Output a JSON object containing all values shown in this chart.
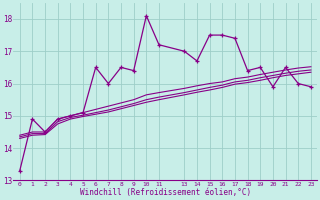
{
  "xlabel": "Windchill (Refroidissement éolien,°C)",
  "background_color": "#c8eee8",
  "grid_color": "#9ecec8",
  "line_color": "#880088",
  "xlim": [
    -0.5,
    23.5
  ],
  "ylim": [
    13.0,
    18.5
  ],
  "yticks": [
    13,
    14,
    15,
    16,
    17,
    18
  ],
  "xtick_positions": [
    0,
    1,
    2,
    3,
    4,
    5,
    6,
    7,
    8,
    9,
    10,
    11,
    13,
    14,
    15,
    16,
    17,
    18,
    19,
    20,
    21,
    22,
    23
  ],
  "xtick_labels": [
    "0",
    "1",
    "2",
    "3",
    "4",
    "5",
    "6",
    "7",
    "8",
    "9",
    "10",
    "11",
    "13",
    "14",
    "15",
    "16",
    "17",
    "18",
    "19",
    "20",
    "21",
    "22",
    "23"
  ],
  "series1_x": [
    0,
    1,
    2,
    3,
    4,
    5,
    6,
    7,
    8,
    9,
    10,
    11,
    13,
    14,
    15,
    16,
    17,
    18,
    19,
    20,
    21,
    22,
    23
  ],
  "series1_y": [
    13.3,
    14.9,
    14.5,
    14.9,
    15.0,
    15.1,
    16.5,
    16.0,
    16.5,
    16.4,
    18.1,
    17.2,
    17.0,
    16.7,
    17.5,
    17.5,
    17.4,
    16.4,
    16.5,
    15.9,
    16.5,
    16.0,
    15.9
  ],
  "series2_x": [
    0,
    1,
    2,
    3,
    4,
    5,
    6,
    7,
    8,
    9,
    10,
    11,
    13,
    14,
    15,
    16,
    17,
    18,
    19,
    20,
    21,
    22,
    23
  ],
  "series2_y": [
    14.4,
    14.5,
    14.5,
    14.9,
    15.0,
    15.1,
    15.2,
    15.3,
    15.4,
    15.5,
    15.65,
    15.72,
    15.85,
    15.93,
    16.0,
    16.05,
    16.15,
    16.2,
    16.28,
    16.35,
    16.42,
    16.48,
    16.52
  ],
  "series3_x": [
    0,
    1,
    2,
    3,
    4,
    5,
    6,
    7,
    8,
    9,
    10,
    11,
    13,
    14,
    15,
    16,
    17,
    18,
    19,
    20,
    21,
    22,
    23
  ],
  "series3_y": [
    14.35,
    14.45,
    14.45,
    14.82,
    14.95,
    15.02,
    15.1,
    15.18,
    15.28,
    15.38,
    15.5,
    15.58,
    15.72,
    15.8,
    15.88,
    15.95,
    16.05,
    16.1,
    16.18,
    16.25,
    16.32,
    16.38,
    16.42
  ],
  "series4_x": [
    0,
    1,
    2,
    3,
    4,
    5,
    6,
    7,
    8,
    9,
    10,
    11,
    13,
    14,
    15,
    16,
    17,
    18,
    19,
    20,
    21,
    22,
    23
  ],
  "series4_y": [
    14.3,
    14.4,
    14.42,
    14.75,
    14.9,
    14.98,
    15.05,
    15.12,
    15.22,
    15.32,
    15.42,
    15.5,
    15.65,
    15.73,
    15.8,
    15.88,
    15.98,
    16.03,
    16.1,
    16.18,
    16.25,
    16.3,
    16.35
  ]
}
